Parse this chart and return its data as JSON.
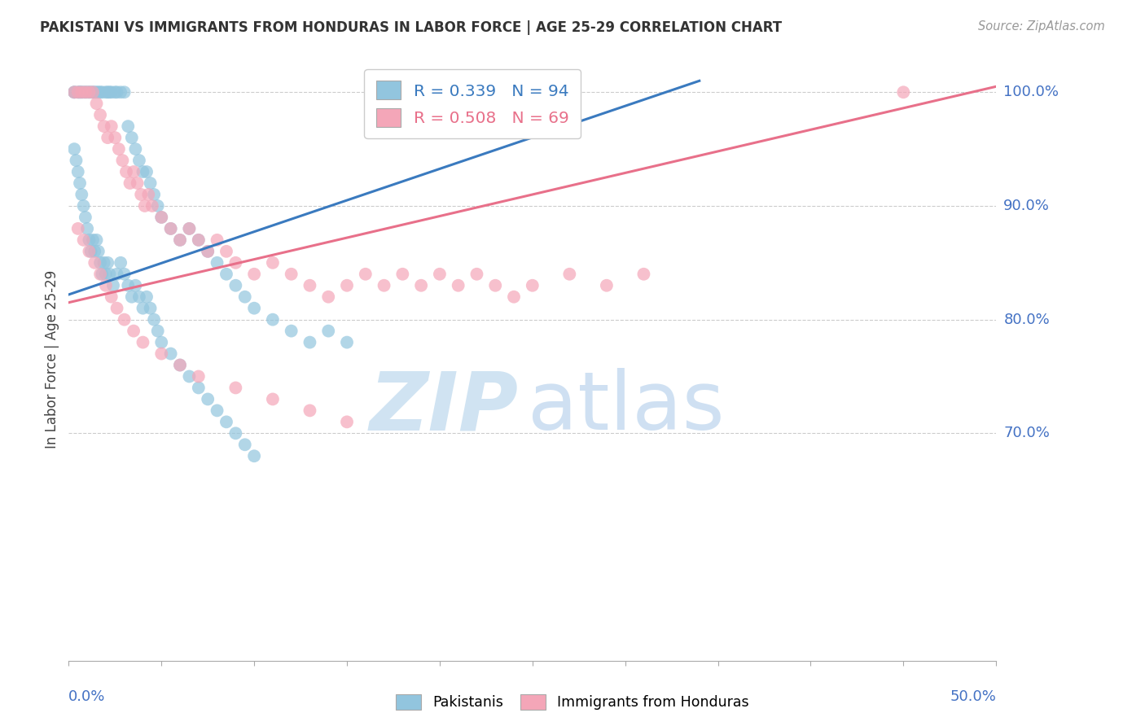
{
  "title": "PAKISTANI VS IMMIGRANTS FROM HONDURAS IN LABOR FORCE | AGE 25-29 CORRELATION CHART",
  "source": "Source: ZipAtlas.com",
  "ylabel": "In Labor Force | Age 25-29",
  "legend_label_blue": "Pakistanis",
  "legend_label_pink": "Immigrants from Honduras",
  "xmin": 0.0,
  "xmax": 0.5,
  "ymin": 0.5,
  "ymax": 1.03,
  "blue_R": 0.339,
  "blue_N": 94,
  "pink_R": 0.508,
  "pink_N": 69,
  "blue_color": "#92c5de",
  "pink_color": "#f4a6b8",
  "blue_line_color": "#3a7abf",
  "pink_line_color": "#e8708a",
  "legend_text_blue": "#3a7abf",
  "legend_text_pink": "#e8708a",
  "grid_color": "#cccccc",
  "axis_color": "#aaaaaa",
  "right_label_color": "#4472c4",
  "xlabel_color": "#4472c4",
  "title_color": "#333333",
  "source_color": "#999999",
  "watermark_zip_color": "#c8dff0",
  "watermark_atlas_color": "#a8c8e8",
  "blue_trend_x": [
    0.0,
    0.34
  ],
  "blue_trend_y": [
    0.822,
    1.01
  ],
  "pink_trend_x": [
    0.0,
    0.5
  ],
  "pink_trend_y": [
    0.815,
    1.005
  ],
  "blue_x": [
    0.003,
    0.003,
    0.005,
    0.006,
    0.006,
    0.007,
    0.008,
    0.009,
    0.01,
    0.011,
    0.012,
    0.013,
    0.014,
    0.015,
    0.016,
    0.017,
    0.018,
    0.02,
    0.021,
    0.022,
    0.023,
    0.025,
    0.026,
    0.028,
    0.03,
    0.032,
    0.034,
    0.036,
    0.038,
    0.04,
    0.042,
    0.044,
    0.046,
    0.048,
    0.05,
    0.055,
    0.06,
    0.065,
    0.07,
    0.075,
    0.08,
    0.085,
    0.09,
    0.095,
    0.1,
    0.11,
    0.12,
    0.13,
    0.14,
    0.15,
    0.003,
    0.004,
    0.005,
    0.006,
    0.007,
    0.008,
    0.009,
    0.01,
    0.011,
    0.012,
    0.013,
    0.014,
    0.015,
    0.016,
    0.017,
    0.018,
    0.019,
    0.02,
    0.021,
    0.022,
    0.024,
    0.026,
    0.028,
    0.03,
    0.032,
    0.034,
    0.036,
    0.038,
    0.04,
    0.042,
    0.044,
    0.046,
    0.048,
    0.05,
    0.055,
    0.06,
    0.065,
    0.07,
    0.075,
    0.08,
    0.085,
    0.09,
    0.095,
    0.1
  ],
  "blue_y": [
    1.0,
    1.0,
    1.0,
    1.0,
    1.0,
    1.0,
    1.0,
    1.0,
    1.0,
    1.0,
    1.0,
    1.0,
    1.0,
    1.0,
    1.0,
    1.0,
    1.0,
    1.0,
    1.0,
    1.0,
    1.0,
    1.0,
    1.0,
    1.0,
    1.0,
    0.97,
    0.96,
    0.95,
    0.94,
    0.93,
    0.93,
    0.92,
    0.91,
    0.9,
    0.89,
    0.88,
    0.87,
    0.88,
    0.87,
    0.86,
    0.85,
    0.84,
    0.83,
    0.82,
    0.81,
    0.8,
    0.79,
    0.78,
    0.79,
    0.78,
    0.95,
    0.94,
    0.93,
    0.92,
    0.91,
    0.9,
    0.89,
    0.88,
    0.87,
    0.86,
    0.87,
    0.86,
    0.87,
    0.86,
    0.85,
    0.84,
    0.85,
    0.84,
    0.85,
    0.84,
    0.83,
    0.84,
    0.85,
    0.84,
    0.83,
    0.82,
    0.83,
    0.82,
    0.81,
    0.82,
    0.81,
    0.8,
    0.79,
    0.78,
    0.77,
    0.76,
    0.75,
    0.74,
    0.73,
    0.72,
    0.71,
    0.7,
    0.69,
    0.68
  ],
  "pink_x": [
    0.003,
    0.005,
    0.007,
    0.009,
    0.011,
    0.013,
    0.015,
    0.017,
    0.019,
    0.021,
    0.023,
    0.025,
    0.027,
    0.029,
    0.031,
    0.033,
    0.035,
    0.037,
    0.039,
    0.041,
    0.043,
    0.045,
    0.05,
    0.055,
    0.06,
    0.065,
    0.07,
    0.075,
    0.08,
    0.085,
    0.09,
    0.1,
    0.11,
    0.12,
    0.13,
    0.14,
    0.15,
    0.16,
    0.17,
    0.18,
    0.19,
    0.2,
    0.21,
    0.22,
    0.23,
    0.24,
    0.25,
    0.27,
    0.29,
    0.31,
    0.005,
    0.008,
    0.011,
    0.014,
    0.017,
    0.02,
    0.023,
    0.026,
    0.03,
    0.035,
    0.04,
    0.05,
    0.06,
    0.07,
    0.09,
    0.11,
    0.13,
    0.15,
    0.45
  ],
  "pink_y": [
    1.0,
    1.0,
    1.0,
    1.0,
    1.0,
    1.0,
    0.99,
    0.98,
    0.97,
    0.96,
    0.97,
    0.96,
    0.95,
    0.94,
    0.93,
    0.92,
    0.93,
    0.92,
    0.91,
    0.9,
    0.91,
    0.9,
    0.89,
    0.88,
    0.87,
    0.88,
    0.87,
    0.86,
    0.87,
    0.86,
    0.85,
    0.84,
    0.85,
    0.84,
    0.83,
    0.82,
    0.83,
    0.84,
    0.83,
    0.84,
    0.83,
    0.84,
    0.83,
    0.84,
    0.83,
    0.82,
    0.83,
    0.84,
    0.83,
    0.84,
    0.88,
    0.87,
    0.86,
    0.85,
    0.84,
    0.83,
    0.82,
    0.81,
    0.8,
    0.79,
    0.78,
    0.77,
    0.76,
    0.75,
    0.74,
    0.73,
    0.72,
    0.71,
    1.0
  ]
}
